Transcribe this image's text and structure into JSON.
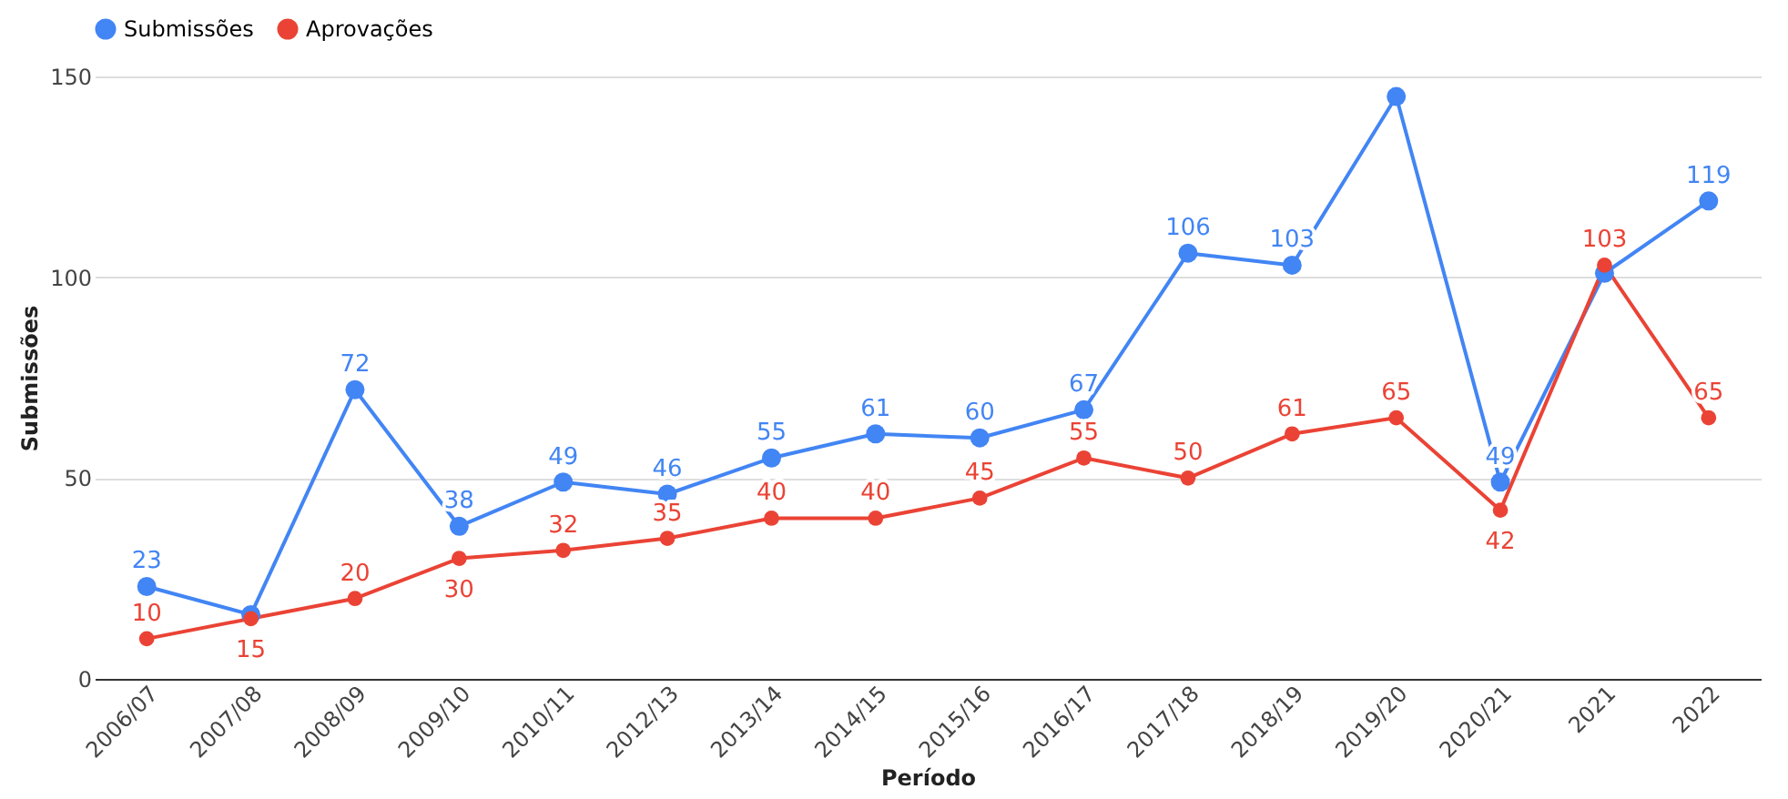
{
  "chart_data": {
    "type": "line",
    "xlabel": "Período",
    "ylabel": "Submissões",
    "categories": [
      "2006/07",
      "2007/08",
      "2008/09",
      "2009/10",
      "2010/11",
      "2012/13",
      "2013/14",
      "2014/15",
      "2015/16",
      "2016/17",
      "2017/18",
      "2018/19",
      "2019/20",
      "2020/21",
      "2021",
      "2022"
    ],
    "series": [
      {
        "name": "Submissões",
        "color": "#4285f4",
        "values": [
          23,
          16,
          72,
          38,
          49,
          46,
          55,
          61,
          60,
          67,
          106,
          103,
          145,
          49,
          101,
          119
        ],
        "value_labels": [
          "23",
          null,
          "72",
          "38",
          "49",
          "46",
          "55",
          "61",
          "60",
          "67",
          "106",
          "103",
          null,
          "49",
          null,
          "119"
        ]
      },
      {
        "name": "Aprovações",
        "color": "#ea4335",
        "values": [
          10,
          15,
          20,
          30,
          32,
          35,
          40,
          40,
          45,
          55,
          50,
          61,
          65,
          42,
          103,
          65
        ],
        "value_labels": [
          "10",
          "15",
          "20",
          "30",
          "32",
          "35",
          "40",
          "40",
          "45",
          "55",
          "50",
          "61",
          "65",
          "42",
          "103",
          "65"
        ]
      }
    ],
    "ylim": [
      0,
      150
    ],
    "yticks": [
      0,
      50,
      100,
      150
    ],
    "grid": "y",
    "legend": "top",
    "marker": "circle",
    "line_style": "solid"
  }
}
